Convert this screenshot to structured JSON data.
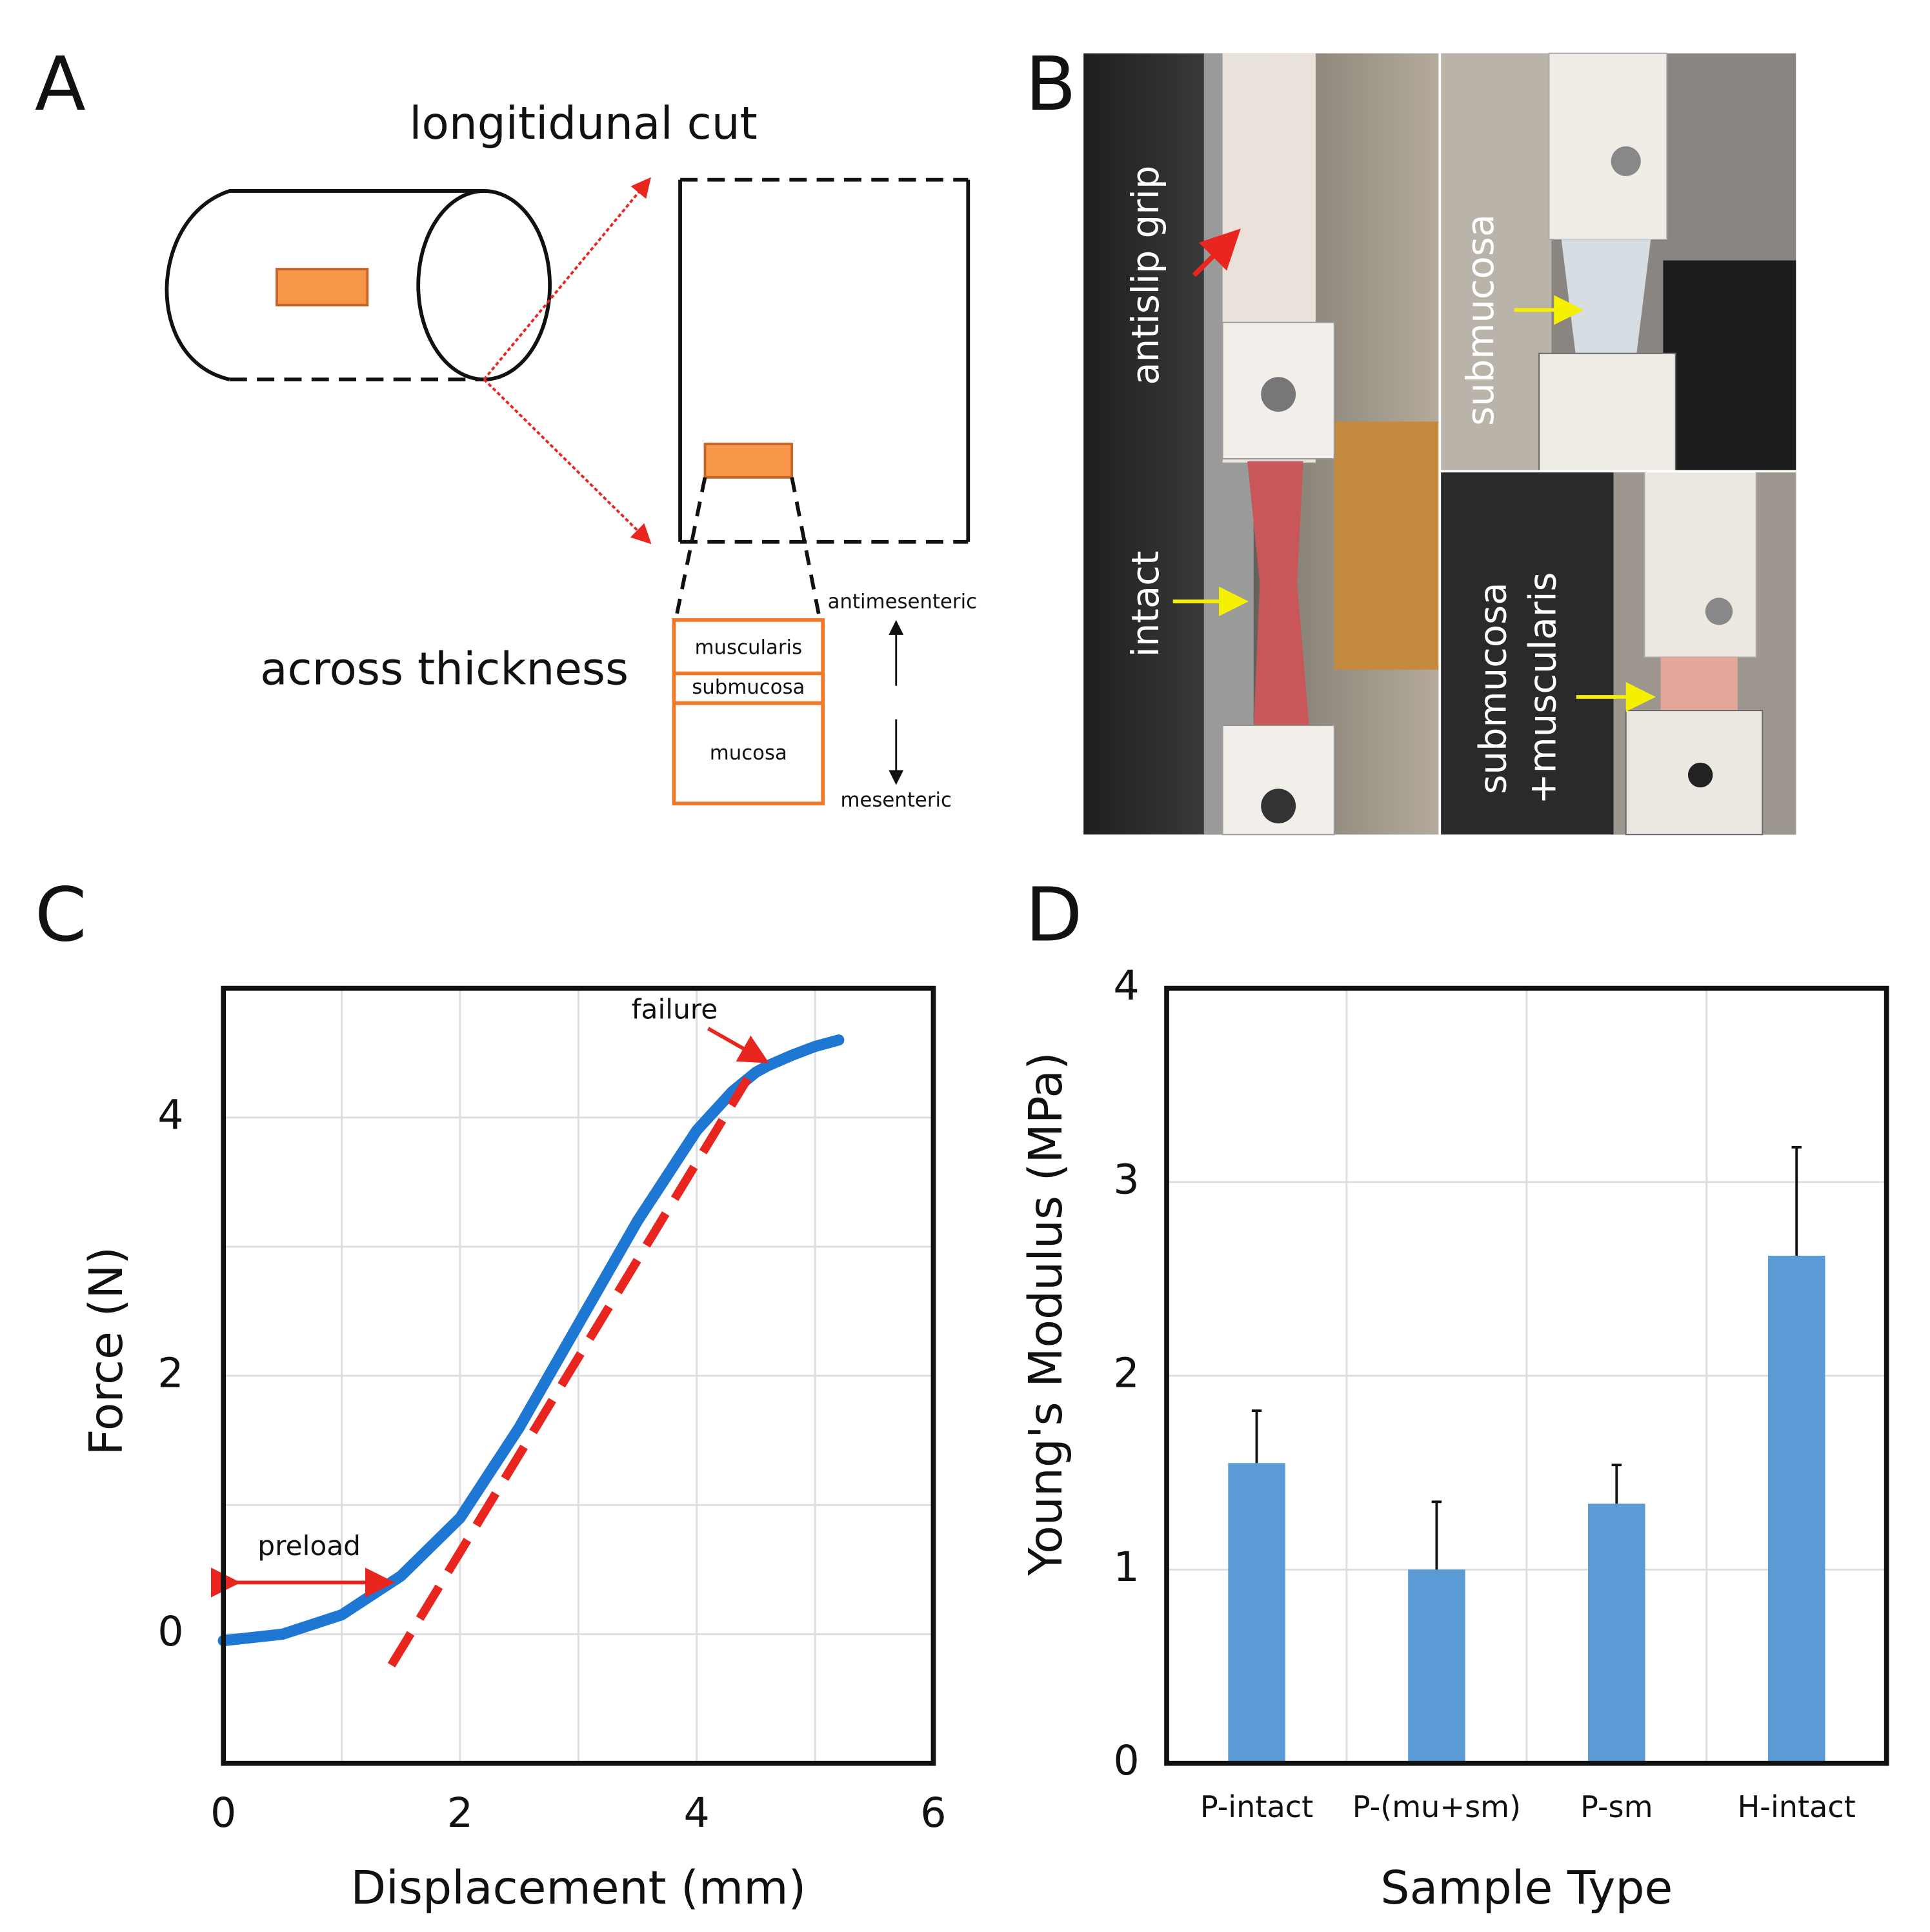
{
  "panel_labels": [
    "A",
    "B",
    "C",
    "D"
  ],
  "diagram": {
    "title": "longitidunal cut",
    "section_label": "across thickness",
    "layers": [
      "muscularis",
      "submucosa",
      "mucosa"
    ],
    "top_side": "antimesenteric",
    "bottom_side": "mesenteric"
  },
  "photos": {
    "labels": [
      "antislip grip",
      "intact",
      "submucosa"
    ],
    "combined_label": [
      "submucosa",
      "+muscularis"
    ]
  },
  "chart_data": [
    {
      "type": "line",
      "xlabel": "Displacement (mm)",
      "ylabel": "Force (N)",
      "xlim": [
        0,
        6
      ],
      "ylim": [
        -1,
        5
      ],
      "xticks": [
        0,
        2,
        4,
        6
      ],
      "yticks": [
        0,
        2,
        4
      ],
      "minor_xticks": [
        1,
        3,
        5
      ],
      "minor_yticks": [
        1,
        3
      ],
      "grid": true,
      "series": [
        {
          "color": "#1f77d4",
          "width": 9,
          "x": [
            0,
            0.5,
            1.0,
            1.5,
            2.0,
            2.5,
            3.0,
            3.5,
            4.0,
            4.3,
            4.5,
            4.6,
            4.8,
            5.0,
            5.2
          ],
          "values": [
            -0.05,
            0.0,
            0.15,
            0.45,
            0.9,
            1.6,
            2.4,
            3.2,
            3.9,
            4.2,
            4.35,
            4.4,
            4.48,
            4.55,
            4.6
          ]
        },
        {
          "color": "#e8251f",
          "width": 7,
          "dashed": true,
          "x": [
            1.42,
            4.43
          ],
          "values": [
            -0.24,
            4.3
          ]
        }
      ],
      "annotations": [
        {
          "text": "failure",
          "target": [
            4.6,
            4.42
          ]
        },
        {
          "text": "preload",
          "span": [
            0,
            1.45
          ],
          "y": 0.4
        }
      ]
    },
    {
      "type": "bar",
      "xlabel": "Sample Type",
      "ylabel": "Young's Modulus (MPa)",
      "categories": [
        "P-intact",
        "P-(mu+sm)",
        "P-sm",
        "H-intact"
      ],
      "values": [
        1.55,
        1.0,
        1.34,
        2.62
      ],
      "errors": [
        0.27,
        0.35,
        0.2,
        0.56
      ],
      "color": "#5b9bd5",
      "ylim": [
        0,
        4
      ],
      "yticks": [
        0,
        1,
        2,
        3,
        4
      ],
      "grid": true
    }
  ]
}
